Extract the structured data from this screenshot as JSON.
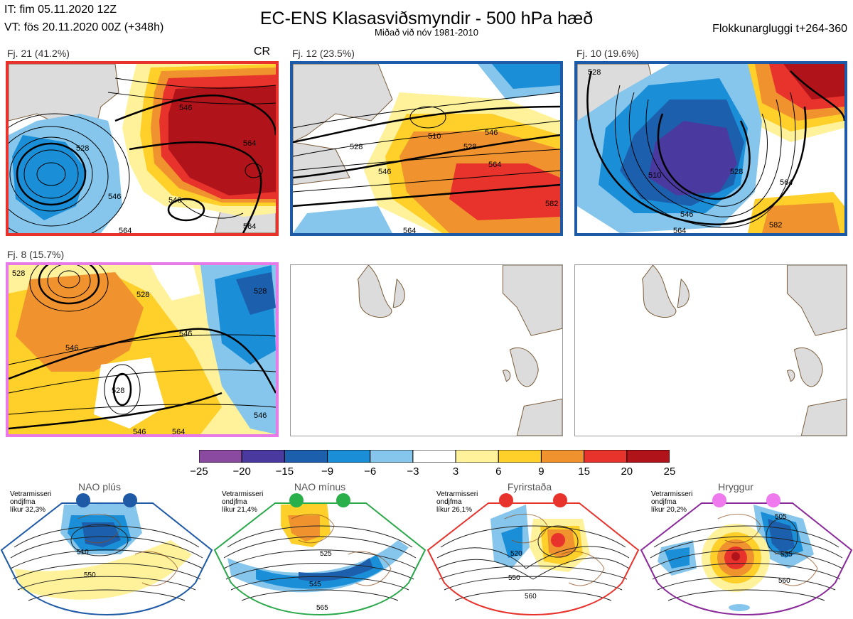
{
  "header": {
    "it": "IT: fim 05.11.2020 12Z",
    "vt": "VT: fös 20.11.2020 00Z  (+348h)",
    "title": "EC-ENS Klasasviðsmyndir - 500 hPa hæð",
    "subtitle": "Miðað við nóv 1981-2010",
    "window": "Flokkunargluggi t+264-360"
  },
  "clusters": [
    {
      "label": "Fj. 21 (41.2%)",
      "tag": "CR",
      "frame_color": "#e8322c",
      "contour_labels": [
        "528",
        "546",
        "564",
        "546",
        "546",
        "564",
        "564"
      ]
    },
    {
      "label": "Fj. 12 (23.5%)",
      "frame_color": "#1f5aa6",
      "contour_labels": [
        "510",
        "528",
        "546",
        "528",
        "546",
        "564",
        "564",
        "582"
      ]
    },
    {
      "label": "Fj. 10 (19.6%)",
      "frame_color": "#1f5aa6",
      "contour_labels": [
        "528",
        "510",
        "528",
        "546",
        "564",
        "564",
        "582"
      ]
    },
    {
      "label": "Fj. 8 (15.7%)",
      "frame_color": "#e87ae8",
      "contour_labels": [
        "528",
        "528",
        "546",
        "546",
        "528",
        "546",
        "546",
        "564",
        "528"
      ]
    }
  ],
  "colorbar": {
    "ticks": [
      "−25",
      "−20",
      "−15",
      "−9",
      "−6",
      "−3",
      "3",
      "6",
      "9",
      "15",
      "20",
      "25"
    ],
    "colors": [
      "#8a4aa0",
      "#4a3aa0",
      "#1c5fac",
      "#1a8fd8",
      "#86c6ec",
      "#ffffff",
      "#fff29a",
      "#ffd02a",
      "#f0922e",
      "#e8322c",
      "#b0141a"
    ]
  },
  "regimes": [
    {
      "name": "NAO plús",
      "note_lines": [
        "Vetrarmisseri",
        "ondjfma",
        "líkur 32,3%"
      ],
      "color": "#1f5aa6",
      "dot_color": "#1f5aa6",
      "contour_labels": [
        "510",
        "550"
      ]
    },
    {
      "name": "NAO mínus",
      "note_lines": [
        "Vetrarmisseri",
        "ondjfma",
        "líkur 21,4%"
      ],
      "color": "#2aa84a",
      "dot_color": "#2ab04a",
      "contour_labels": [
        "525",
        "545",
        "565"
      ]
    },
    {
      "name": "Fyrirstaða",
      "note_lines": [
        "Vetrarmisseri",
        "ondjfma",
        "líkur 26,1%"
      ],
      "color": "#e8322c",
      "dot_color": "#e8322c",
      "contour_labels": [
        "520",
        "550",
        "560"
      ]
    },
    {
      "name": "Hryggur",
      "note_lines": [
        "Vetrarmisseri",
        "ondjfma",
        "líkur 20,2%"
      ],
      "color": "#8a2a9a",
      "dot_color": "#ee7aee",
      "contour_labels": [
        "505",
        "535",
        "560"
      ]
    }
  ]
}
